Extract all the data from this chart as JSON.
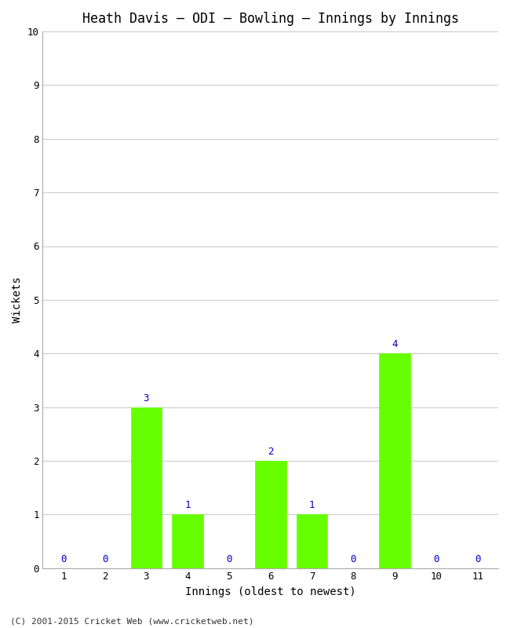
{
  "title": "Heath Davis – ODI – Bowling – Innings by Innings",
  "xlabel": "Innings (oldest to newest)",
  "ylabel": "Wickets",
  "x_labels": [
    "1",
    "2",
    "3",
    "4",
    "5",
    "6",
    "7",
    "8",
    "9",
    "10",
    "11"
  ],
  "values": [
    0,
    0,
    3,
    1,
    0,
    2,
    1,
    0,
    4,
    0,
    0
  ],
  "bar_color": "#66ff00",
  "bar_edge_color": "#66ff00",
  "label_color": "#0000cc",
  "ylim": [
    0,
    10
  ],
  "yticks": [
    0,
    1,
    2,
    3,
    4,
    5,
    6,
    7,
    8,
    9,
    10
  ],
  "background_color": "#ffffff",
  "grid_color": "#cccccc",
  "title_fontsize": 12,
  "axis_label_fontsize": 10,
  "tick_fontsize": 9,
  "label_fontsize": 9,
  "footer": "(C) 2001-2015 Cricket Web (www.cricketweb.net)"
}
